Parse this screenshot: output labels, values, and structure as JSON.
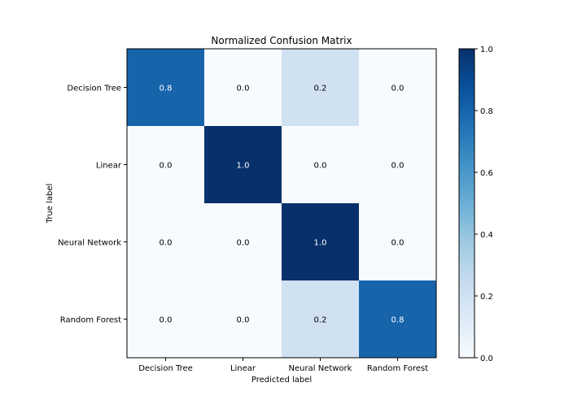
{
  "chart_data": {
    "type": "heatmap",
    "title": "Normalized Confusion Matrix",
    "xlabel": "Predicted label",
    "ylabel": "True label",
    "x_categories": [
      "Decision Tree",
      "Linear",
      "Neural Network",
      "Random Forest"
    ],
    "y_categories": [
      "Decision Tree",
      "Linear",
      "Neural Network",
      "Random Forest"
    ],
    "values": [
      [
        0.8,
        0.0,
        0.2,
        0.0
      ],
      [
        0.0,
        1.0,
        0.0,
        0.0
      ],
      [
        0.0,
        0.0,
        1.0,
        0.0
      ],
      [
        0.0,
        0.0,
        0.2,
        0.8
      ]
    ],
    "cell_labels": [
      [
        "0.8",
        "0.0",
        "0.2",
        "0.0"
      ],
      [
        "0.0",
        "1.0",
        "0.0",
        "0.0"
      ],
      [
        "0.0",
        "0.0",
        "1.0",
        "0.0"
      ],
      [
        "0.0",
        "0.0",
        "0.2",
        "0.8"
      ]
    ],
    "value_range": [
      0,
      1
    ],
    "colormap": "Blues",
    "colormap_low": "#f7fbff",
    "colormap_high": "#08306b",
    "colorbar": {
      "ticks": [
        0.0,
        0.2,
        0.4,
        0.6,
        0.8,
        1.0
      ],
      "tick_labels": [
        "0.0",
        "0.2",
        "0.4",
        "0.6",
        "0.8",
        "1.0"
      ]
    },
    "grid": false
  }
}
